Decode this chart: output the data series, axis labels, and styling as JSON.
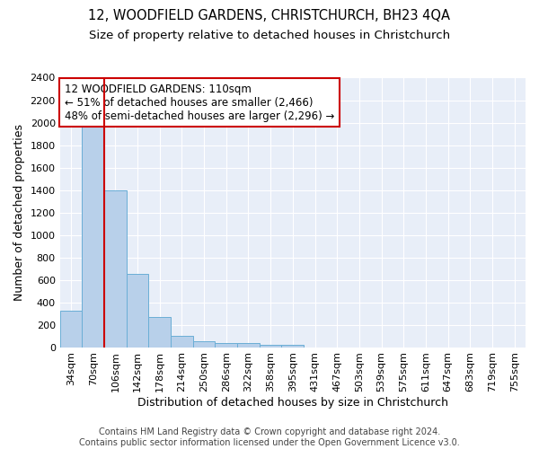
{
  "title_line1": "12, WOODFIELD GARDENS, CHRISTCHURCH, BH23 4QA",
  "title_line2": "Size of property relative to detached houses in Christchurch",
  "xlabel": "Distribution of detached houses by size in Christchurch",
  "ylabel": "Number of detached properties",
  "footer_line1": "Contains HM Land Registry data © Crown copyright and database right 2024.",
  "footer_line2": "Contains public sector information licensed under the Open Government Licence v3.0.",
  "annotation_line1": "12 WOODFIELD GARDENS: 110sqm",
  "annotation_line2": "← 51% of detached houses are smaller (2,466)",
  "annotation_line3": "48% of semi-detached houses are larger (2,296) →",
  "bar_labels": [
    "34sqm",
    "70sqm",
    "106sqm",
    "142sqm",
    "178sqm",
    "214sqm",
    "250sqm",
    "286sqm",
    "322sqm",
    "358sqm",
    "395sqm",
    "431sqm",
    "467sqm",
    "503sqm",
    "539sqm",
    "575sqm",
    "611sqm",
    "647sqm",
    "683sqm",
    "719sqm",
    "755sqm"
  ],
  "bar_values": [
    325,
    1975,
    1400,
    650,
    270,
    100,
    50,
    40,
    35,
    20,
    20,
    0,
    0,
    0,
    0,
    0,
    0,
    0,
    0,
    0,
    0
  ],
  "bar_color": "#b8d0ea",
  "bar_edge_color": "#6aaed6",
  "marker_index": 2,
  "marker_color": "#cc0000",
  "ylim": [
    0,
    2400
  ],
  "yticks": [
    0,
    200,
    400,
    600,
    800,
    1000,
    1200,
    1400,
    1600,
    1800,
    2000,
    2200,
    2400
  ],
  "bg_color": "#e8eef8",
  "grid_color": "#ffffff",
  "annotation_box_color": "#cc0000",
  "title_fontsize": 10.5,
  "subtitle_fontsize": 9.5,
  "axis_label_fontsize": 9,
  "tick_fontsize": 8,
  "annotation_fontsize": 8.5,
  "footer_fontsize": 7
}
